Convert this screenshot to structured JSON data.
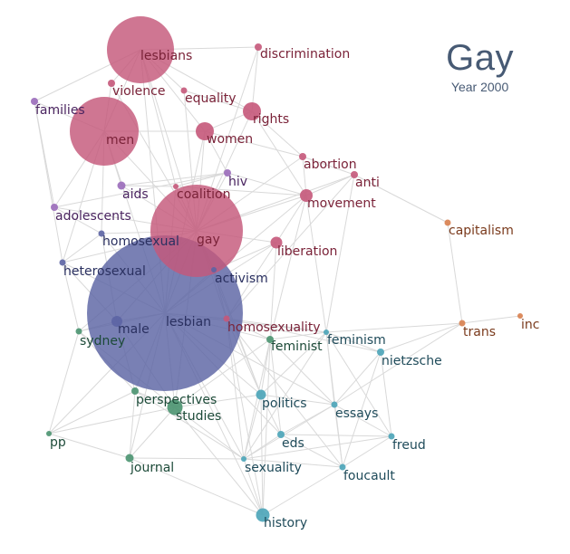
{
  "header": {
    "title": "Gay",
    "subtitle": "Year 2000"
  },
  "groups": {
    "pink": "#c5587a",
    "purple": "#9a6cba",
    "blue": "#5c64a4",
    "green": "#4a9470",
    "teal": "#4aa4b8",
    "orange": "#d8804e"
  },
  "label_colors": {
    "pink": "#7a2238",
    "purple": "#4a2460",
    "blue": "#2a3060",
    "green": "#1c4a38",
    "teal": "#1f4b5a",
    "orange": "#7a3a1c"
  },
  "nodes": [
    {
      "id": "lesbians",
      "group": "pink"
    },
    {
      "id": "discrimination",
      "group": "pink"
    },
    {
      "id": "violence",
      "group": "pink"
    },
    {
      "id": "equality",
      "group": "pink"
    },
    {
      "id": "families",
      "group": "purple"
    },
    {
      "id": "rights",
      "group": "pink"
    },
    {
      "id": "men",
      "group": "pink"
    },
    {
      "id": "women",
      "group": "pink"
    },
    {
      "id": "abortion",
      "group": "pink"
    },
    {
      "id": "anti",
      "group": "pink"
    },
    {
      "id": "hiv",
      "group": "purple"
    },
    {
      "id": "aids",
      "group": "purple"
    },
    {
      "id": "coalition",
      "group": "pink"
    },
    {
      "id": "movement",
      "group": "pink"
    },
    {
      "id": "adolescents",
      "group": "purple"
    },
    {
      "id": "gay",
      "group": "pink"
    },
    {
      "id": "capitalism",
      "group": "orange"
    },
    {
      "id": "homosexual",
      "group": "blue"
    },
    {
      "id": "liberation",
      "group": "pink"
    },
    {
      "id": "heterosexual",
      "group": "blue"
    },
    {
      "id": "activism",
      "group": "blue"
    },
    {
      "id": "lesbian",
      "group": "blue"
    },
    {
      "id": "male",
      "group": "blue"
    },
    {
      "id": "homosexuality",
      "group": "pink"
    },
    {
      "id": "inc",
      "group": "orange"
    },
    {
      "id": "trans",
      "group": "orange"
    },
    {
      "id": "sydney",
      "group": "green"
    },
    {
      "id": "feminist",
      "group": "green"
    },
    {
      "id": "feminism",
      "group": "teal"
    },
    {
      "id": "nietzsche",
      "group": "teal"
    },
    {
      "id": "perspectives",
      "group": "green"
    },
    {
      "id": "studies",
      "group": "green"
    },
    {
      "id": "politics",
      "group": "teal"
    },
    {
      "id": "essays",
      "group": "teal"
    },
    {
      "id": "pp",
      "group": "green"
    },
    {
      "id": "eds",
      "group": "teal"
    },
    {
      "id": "freud",
      "group": "teal"
    },
    {
      "id": "journal",
      "group": "green"
    },
    {
      "id": "sexuality",
      "group": "teal"
    },
    {
      "id": "foucault",
      "group": "teal"
    },
    {
      "id": "history",
      "group": "teal"
    }
  ],
  "edges": [
    [
      "lesbians",
      "discrimination"
    ],
    [
      "lesbians",
      "men"
    ],
    [
      "lesbians",
      "gay"
    ],
    [
      "lesbians",
      "violence"
    ],
    [
      "lesbians",
      "equality"
    ],
    [
      "lesbians",
      "rights"
    ],
    [
      "lesbians",
      "families"
    ],
    [
      "lesbians",
      "lesbian"
    ],
    [
      "lesbians",
      "women"
    ],
    [
      "lesbians",
      "coalition"
    ],
    [
      "discrimination",
      "rights"
    ],
    [
      "discrimination",
      "gay"
    ],
    [
      "violence",
      "men"
    ],
    [
      "violence",
      "gay"
    ],
    [
      "equality",
      "rights"
    ],
    [
      "equality",
      "gay"
    ],
    [
      "families",
      "men"
    ],
    [
      "families",
      "adolescents"
    ],
    [
      "families",
      "heterosexual"
    ],
    [
      "rights",
      "gay"
    ],
    [
      "rights",
      "movement"
    ],
    [
      "rights",
      "women"
    ],
    [
      "rights",
      "abortion"
    ],
    [
      "men",
      "women"
    ],
    [
      "men",
      "gay"
    ],
    [
      "men",
      "lesbian"
    ],
    [
      "men",
      "aids"
    ],
    [
      "men",
      "adolescents"
    ],
    [
      "men",
      "homosexual"
    ],
    [
      "men",
      "heterosexual"
    ],
    [
      "women",
      "gay"
    ],
    [
      "women",
      "lesbian"
    ],
    [
      "women",
      "hiv"
    ],
    [
      "women",
      "abortion"
    ],
    [
      "abortion",
      "anti"
    ],
    [
      "abortion",
      "movement"
    ],
    [
      "abortion",
      "gay"
    ],
    [
      "anti",
      "movement"
    ],
    [
      "anti",
      "capitalism"
    ],
    [
      "anti",
      "gay"
    ],
    [
      "anti",
      "homosexuality"
    ],
    [
      "anti",
      "feminism"
    ],
    [
      "hiv",
      "aids"
    ],
    [
      "hiv",
      "gay"
    ],
    [
      "hiv",
      "coalition"
    ],
    [
      "hiv",
      "movement"
    ],
    [
      "hiv",
      "adolescents"
    ],
    [
      "aids",
      "coalition"
    ],
    [
      "aids",
      "gay"
    ],
    [
      "coalition",
      "gay"
    ],
    [
      "coalition",
      "movement"
    ],
    [
      "coalition",
      "lesbian"
    ],
    [
      "movement",
      "gay"
    ],
    [
      "movement",
      "liberation"
    ],
    [
      "movement",
      "lesbian"
    ],
    [
      "movement",
      "feminism"
    ],
    [
      "movement",
      "feminist"
    ],
    [
      "adolescents",
      "gay"
    ],
    [
      "adolescents",
      "homosexual"
    ],
    [
      "gay",
      "homosexual"
    ],
    [
      "gay",
      "liberation"
    ],
    [
      "gay",
      "lesbian"
    ],
    [
      "gay",
      "activism"
    ],
    [
      "gay",
      "male"
    ],
    [
      "gay",
      "heterosexual"
    ],
    [
      "gay",
      "homosexuality"
    ],
    [
      "gay",
      "studies"
    ],
    [
      "gay",
      "politics"
    ],
    [
      "gay",
      "sydney"
    ],
    [
      "capitalism",
      "trans"
    ],
    [
      "homosexual",
      "heterosexual"
    ],
    [
      "homosexual",
      "lesbian"
    ],
    [
      "homosexual",
      "male"
    ],
    [
      "liberation",
      "lesbian"
    ],
    [
      "liberation",
      "activism"
    ],
    [
      "liberation",
      "homosexuality"
    ],
    [
      "liberation",
      "feminist"
    ],
    [
      "heterosexual",
      "lesbian"
    ],
    [
      "heterosexual",
      "male"
    ],
    [
      "heterosexual",
      "sydney"
    ],
    [
      "activism",
      "lesbian"
    ],
    [
      "activism",
      "homosexuality"
    ],
    [
      "activism",
      "politics"
    ],
    [
      "lesbian",
      "male"
    ],
    [
      "lesbian",
      "homosexuality"
    ],
    [
      "lesbian",
      "feminist"
    ],
    [
      "lesbian",
      "sydney"
    ],
    [
      "lesbian",
      "perspectives"
    ],
    [
      "lesbian",
      "studies"
    ],
    [
      "lesbian",
      "politics"
    ],
    [
      "lesbian",
      "history"
    ],
    [
      "lesbian",
      "journal"
    ],
    [
      "lesbian",
      "pp"
    ],
    [
      "lesbian",
      "sexuality"
    ],
    [
      "lesbian",
      "eds"
    ],
    [
      "lesbian",
      "feminism"
    ],
    [
      "lesbian",
      "essays"
    ],
    [
      "male",
      "sydney"
    ],
    [
      "male",
      "perspectives"
    ],
    [
      "male",
      "studies"
    ],
    [
      "homosexuality",
      "feminist"
    ],
    [
      "homosexuality",
      "feminism"
    ],
    [
      "homosexuality",
      "politics"
    ],
    [
      "homosexuality",
      "sexuality"
    ],
    [
      "homosexuality",
      "foucault"
    ],
    [
      "homosexuality",
      "history"
    ],
    [
      "homosexuality",
      "nietzsche"
    ],
    [
      "inc",
      "trans"
    ],
    [
      "trans",
      "nietzsche"
    ],
    [
      "trans",
      "feminism"
    ],
    [
      "trans",
      "essays"
    ],
    [
      "sydney",
      "pp"
    ],
    [
      "sydney",
      "studies"
    ],
    [
      "sydney",
      "perspectives"
    ],
    [
      "feminist",
      "feminism"
    ],
    [
      "feminist",
      "politics"
    ],
    [
      "feminist",
      "essays"
    ],
    [
      "feminist",
      "studies"
    ],
    [
      "feminist",
      "sexuality"
    ],
    [
      "feminist",
      "history"
    ],
    [
      "feminist",
      "eds"
    ],
    [
      "feminism",
      "nietzsche"
    ],
    [
      "feminism",
      "essays"
    ],
    [
      "feminism",
      "foucault"
    ],
    [
      "feminism",
      "politics"
    ],
    [
      "feminism",
      "freud"
    ],
    [
      "feminism",
      "sexuality"
    ],
    [
      "nietzsche",
      "essays"
    ],
    [
      "nietzsche",
      "freud"
    ],
    [
      "nietzsche",
      "foucault"
    ],
    [
      "perspectives",
      "studies"
    ],
    [
      "perspectives",
      "journal"
    ],
    [
      "perspectives",
      "pp"
    ],
    [
      "perspectives",
      "sexuality"
    ],
    [
      "studies",
      "journal"
    ],
    [
      "studies",
      "politics"
    ],
    [
      "studies",
      "sexuality"
    ],
    [
      "studies",
      "history"
    ],
    [
      "studies",
      "pp"
    ],
    [
      "politics",
      "essays"
    ],
    [
      "politics",
      "eds"
    ],
    [
      "politics",
      "sexuality"
    ],
    [
      "politics",
      "history"
    ],
    [
      "essays",
      "freud"
    ],
    [
      "essays",
      "foucault"
    ],
    [
      "essays",
      "eds"
    ],
    [
      "essays",
      "sexuality"
    ],
    [
      "pp",
      "journal"
    ],
    [
      "eds",
      "sexuality"
    ],
    [
      "eds",
      "foucault"
    ],
    [
      "eds",
      "freud"
    ],
    [
      "freud",
      "foucault"
    ],
    [
      "freud",
      "sexuality"
    ],
    [
      "journal",
      "history"
    ],
    [
      "journal",
      "sexuality"
    ],
    [
      "sexuality",
      "foucault"
    ],
    [
      "sexuality",
      "history"
    ],
    [
      "foucault",
      "history"
    ]
  ]
}
